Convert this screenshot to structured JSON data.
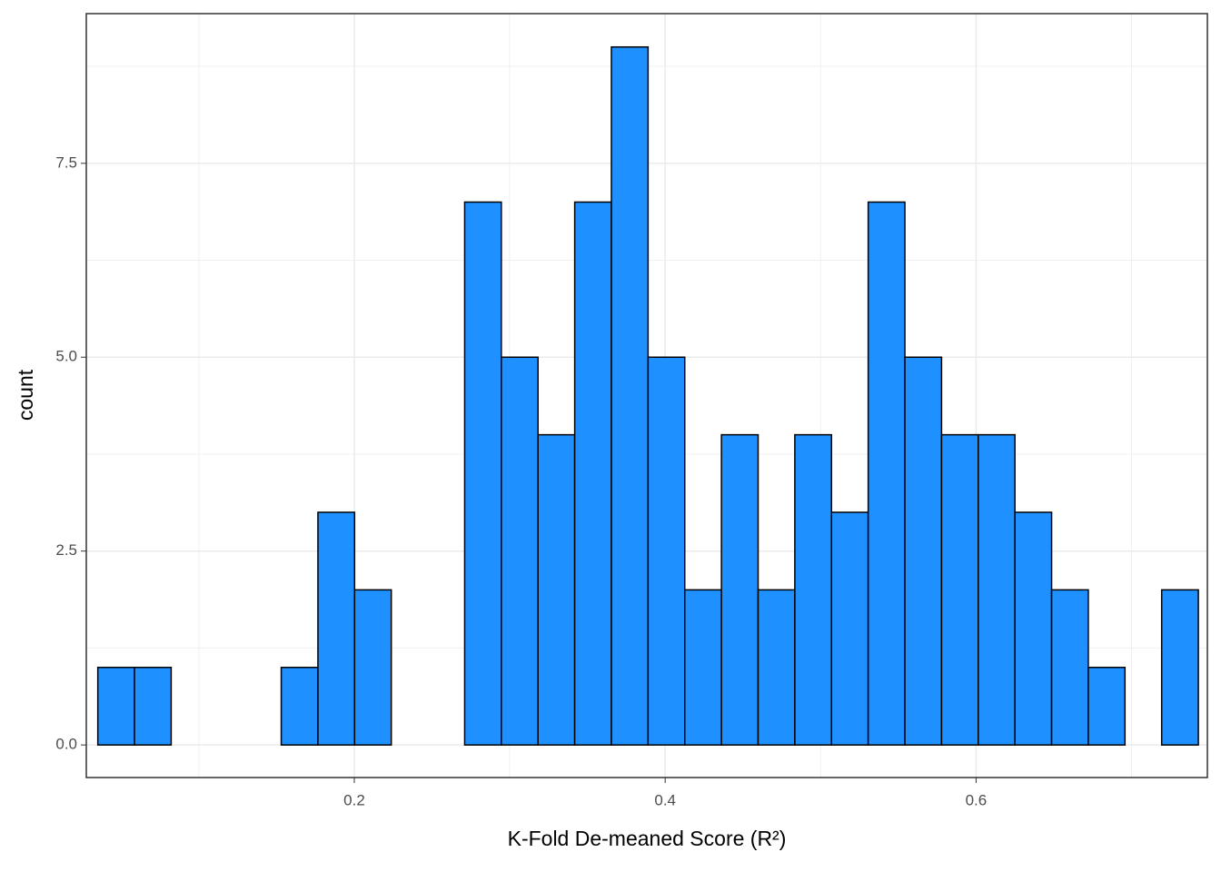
{
  "chart_data": {
    "type": "histogram",
    "x_label": "K-Fold De-meaned Score (R²)",
    "y_label": "count",
    "bins": [
      0.035,
      0.0586,
      0.0822,
      0.1058,
      0.1294,
      0.153,
      0.1766,
      0.2002,
      0.2238,
      0.2474,
      0.271,
      0.2946,
      0.3182,
      0.3418,
      0.3654,
      0.389,
      0.4126,
      0.4362,
      0.4598,
      0.4834,
      0.507,
      0.5306,
      0.5542,
      0.5778,
      0.6014,
      0.625,
      0.6486,
      0.6722,
      0.6958,
      0.7194,
      0.743
    ],
    "values": [
      1,
      1,
      0,
      0,
      0,
      1,
      3,
      2,
      0,
      0,
      7,
      5,
      4,
      7,
      9,
      5,
      2,
      4,
      2,
      4,
      3,
      7,
      5,
      4,
      4,
      3,
      2,
      1,
      0,
      2
    ],
    "color": "#1e90ff",
    "xlim": [
      0.0276,
      0.7488
    ],
    "ylim": [
      -0.42,
      9.43
    ],
    "xticks": [
      0.2,
      0.4,
      0.6
    ],
    "yticks": [
      {
        "value": 0,
        "label": "0.0"
      },
      2.5,
      {
        "value": 5,
        "label": "5.0"
      },
      7.5
    ],
    "grid": true
  }
}
